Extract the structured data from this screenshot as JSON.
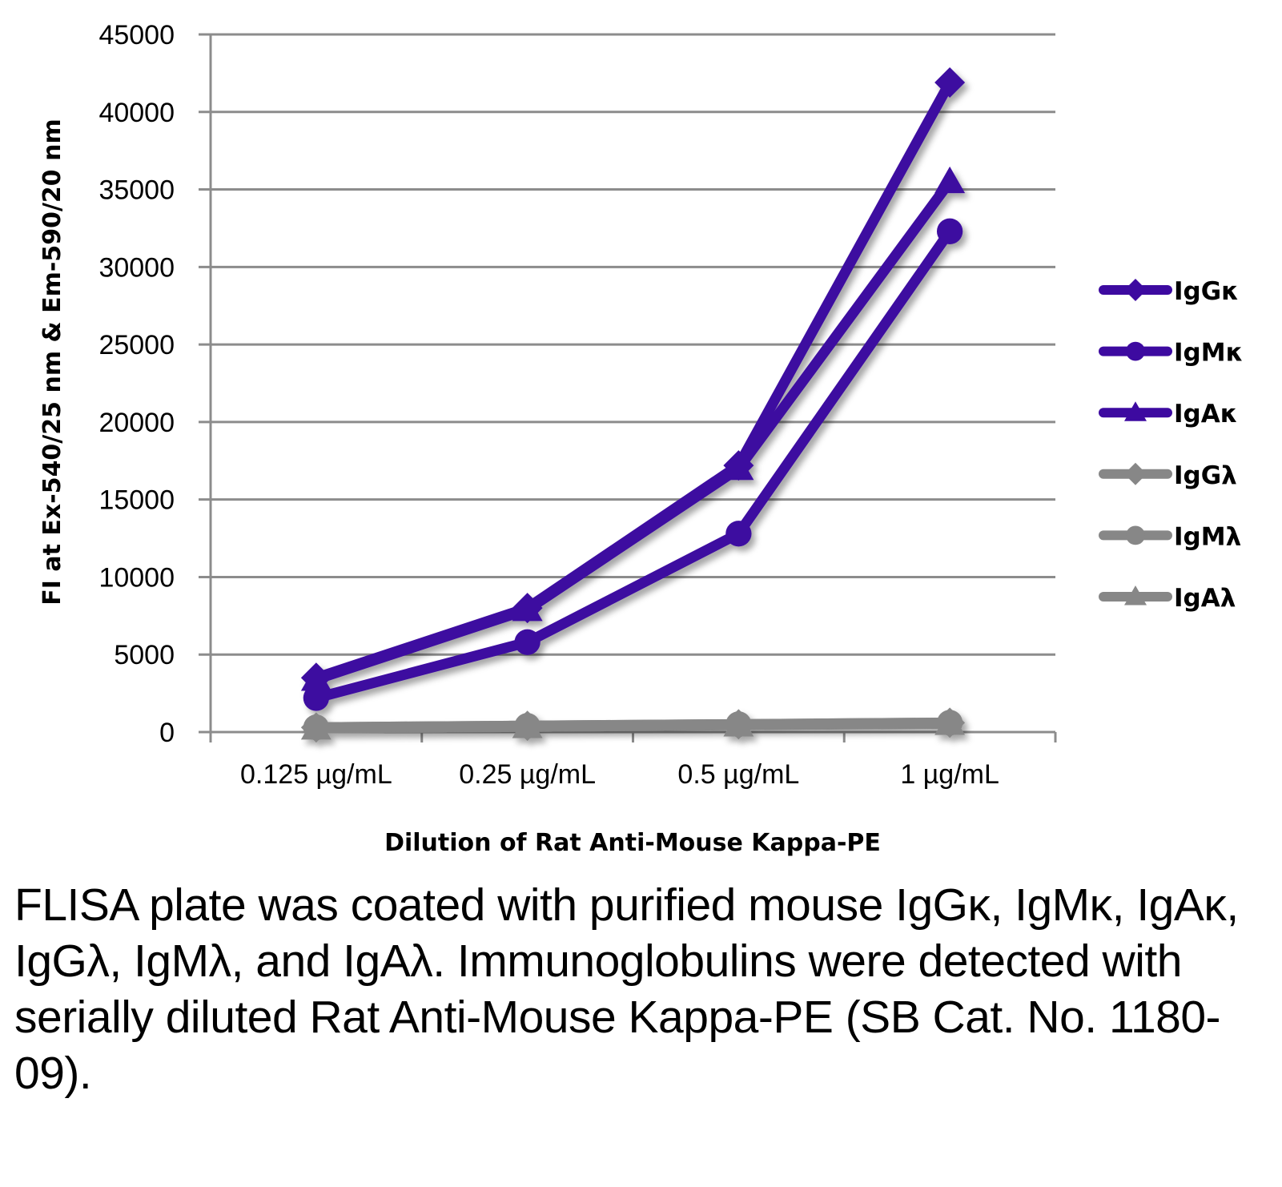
{
  "chart_data": {
    "type": "line",
    "title": "",
    "xlabel": "Dilution of Rat Anti-Mouse Kappa-PE",
    "ylabel": "FI at Ex-540/25 nm & Em-590/20 nm",
    "categories": [
      "0.125 µg/mL",
      "0.25 µg/mL",
      "0.5 µg/mL",
      "1 µg/mL"
    ],
    "ylim": [
      0,
      45000
    ],
    "yticks": [
      0,
      5000,
      10000,
      15000,
      20000,
      25000,
      30000,
      35000,
      40000,
      45000
    ],
    "grid": true,
    "legend_position": "right",
    "series": [
      {
        "name": "IgGκ",
        "marker": "diamond",
        "color": "#3d0aa0",
        "values": [
          3500,
          8000,
          17200,
          41900
        ]
      },
      {
        "name": "IgMκ",
        "marker": "circle",
        "color": "#3d0aa0",
        "values": [
          2200,
          5800,
          12800,
          32300
        ]
      },
      {
        "name": "IgAκ",
        "marker": "triangle",
        "color": "#3d0aa0",
        "values": [
          3400,
          7900,
          17000,
          35500
        ]
      },
      {
        "name": "IgGλ",
        "marker": "diamond",
        "color": "#878787",
        "values": [
          300,
          400,
          500,
          600
        ]
      },
      {
        "name": "IgMλ",
        "marker": "circle",
        "color": "#878787",
        "values": [
          300,
          400,
          500,
          600
        ]
      },
      {
        "name": "IgAλ",
        "marker": "triangle",
        "color": "#878787",
        "values": [
          250,
          350,
          450,
          550
        ]
      }
    ]
  },
  "caption": "FLISA plate was coated with purified mouse IgGκ, IgMκ, IgAκ, IgGλ, IgMλ, and IgAλ. Immunoglobulins were detected with serially diluted Rat Anti-Mouse Kappa-PE (SB Cat. No. 1180-09)."
}
